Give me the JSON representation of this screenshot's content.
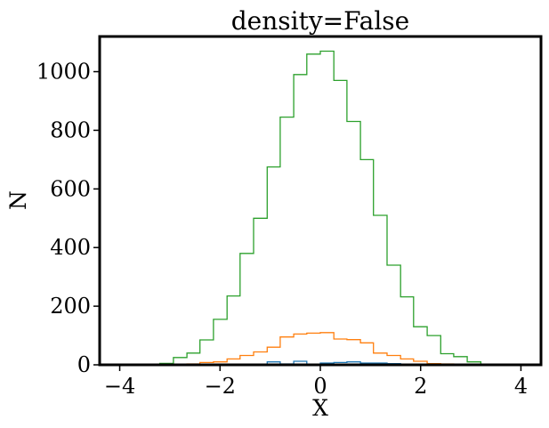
{
  "chart_data": {
    "type": "step-histogram",
    "title": "density=False",
    "xlabel": "X",
    "ylabel": "N",
    "xlim": [
      -4.4,
      4.4
    ],
    "ylim": [
      0,
      1120
    ],
    "x_ticks": [
      -4,
      -2,
      0,
      2,
      4
    ],
    "x_tick_labels": [
      "−4",
      "−2",
      "0",
      "2",
      "4"
    ],
    "y_ticks": [
      0,
      200,
      400,
      600,
      800,
      1000
    ],
    "y_tick_labels": [
      "0",
      "200",
      "400",
      "600",
      "800",
      "1000"
    ],
    "grid": false,
    "bin_edges": [
      -4.0,
      -3.73,
      -3.46,
      -3.2,
      -2.93,
      -2.66,
      -2.4,
      -2.13,
      -1.86,
      -1.6,
      -1.33,
      -1.06,
      -0.8,
      -0.53,
      -0.27,
      0.0,
      0.27,
      0.53,
      0.8,
      1.06,
      1.33,
      1.6,
      1.86,
      2.13,
      2.4,
      2.66,
      2.93,
      3.2,
      3.46,
      3.73,
      4.0
    ],
    "series": [
      {
        "color": "#1f77b4",
        "values": [
          0,
          0,
          0,
          0,
          0,
          0,
          0,
          0,
          0,
          0,
          1,
          10,
          3,
          12,
          2,
          6,
          8,
          10,
          6,
          6,
          4,
          2,
          0,
          0,
          0,
          0,
          0,
          0,
          0,
          0
        ]
      },
      {
        "color": "#ff7f0e",
        "values": [
          0,
          0,
          0,
          0,
          1,
          3,
          8,
          10,
          20,
          32,
          44,
          60,
          95,
          105,
          108,
          110,
          88,
          86,
          75,
          40,
          32,
          20,
          12,
          4,
          3,
          0,
          0,
          0,
          0,
          0
        ]
      },
      {
        "color": "#2ca02c",
        "values": [
          0,
          0,
          0,
          5,
          25,
          40,
          85,
          155,
          235,
          380,
          500,
          675,
          845,
          990,
          1060,
          1070,
          970,
          830,
          700,
          510,
          340,
          232,
          130,
          100,
          38,
          28,
          10,
          2,
          0,
          0
        ]
      }
    ]
  }
}
